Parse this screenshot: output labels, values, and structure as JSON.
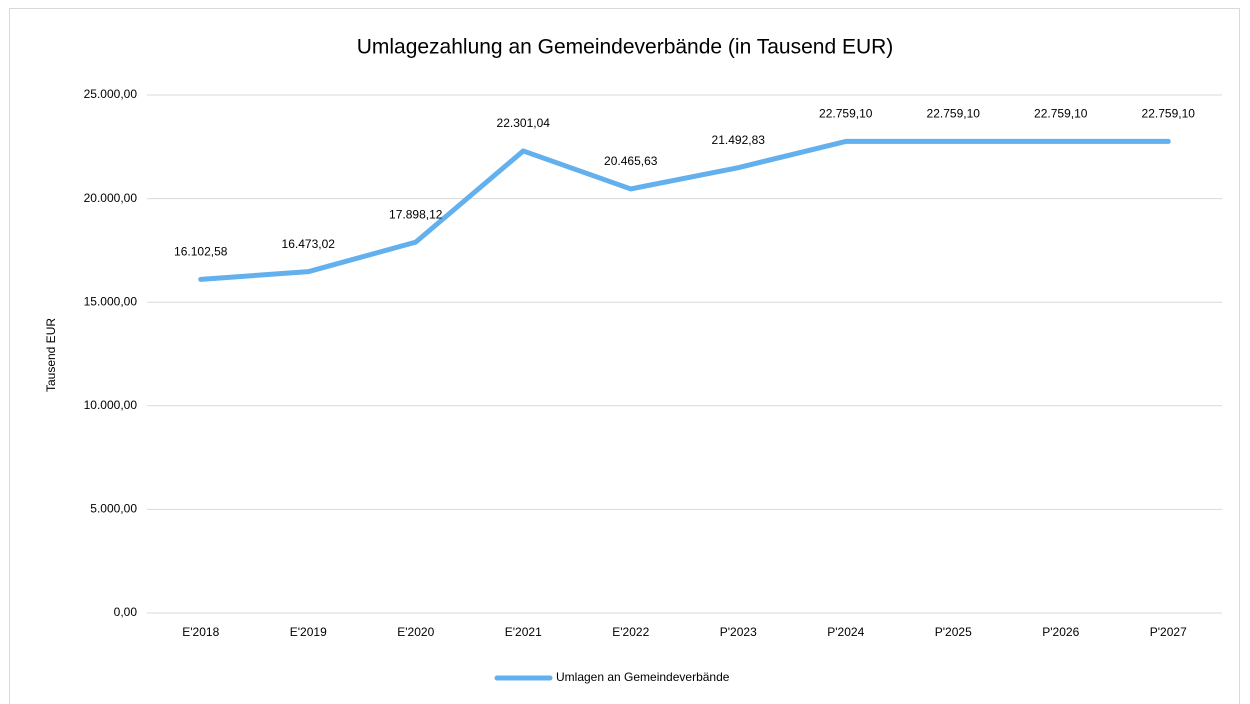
{
  "chart_data": {
    "type": "line",
    "title": "Umlagezahlung an Gemeindeverbände (in Tausend EUR)",
    "y_label": "Tausend EUR",
    "categories": [
      "E'2018",
      "E'2019",
      "E'2020",
      "E'2021",
      "E'2022",
      "P'2023",
      "P'2024",
      "P'2025",
      "P'2026",
      "P'2027"
    ],
    "series": [
      {
        "name": "Umlagen an Gemeindeverbände",
        "color": "#63b0ee",
        "values": [
          16102.58,
          16473.02,
          17898.12,
          22301.04,
          20465.63,
          21492.83,
          22759.1,
          22759.1,
          22759.1,
          22759.1
        ],
        "value_labels": [
          "16.102,58",
          "16.473,02",
          "17.898,12",
          "22.301,04",
          "20.465,63",
          "21.492,83",
          "22.759,10",
          "22.759,10",
          "22.759,10",
          "22.759,10"
        ]
      }
    ],
    "ylim": [
      0,
      25000
    ],
    "yticks": [
      {
        "value": 0,
        "label": "0,00"
      },
      {
        "value": 5000,
        "label": "5.000,00"
      },
      {
        "value": 10000,
        "label": "10.000,00"
      },
      {
        "value": 15000,
        "label": "15.000,00"
      },
      {
        "value": 20000,
        "label": "20.000,00"
      },
      {
        "value": 25000,
        "label": "25.000,00"
      }
    ],
    "grid": true,
    "legend": "bottom"
  }
}
